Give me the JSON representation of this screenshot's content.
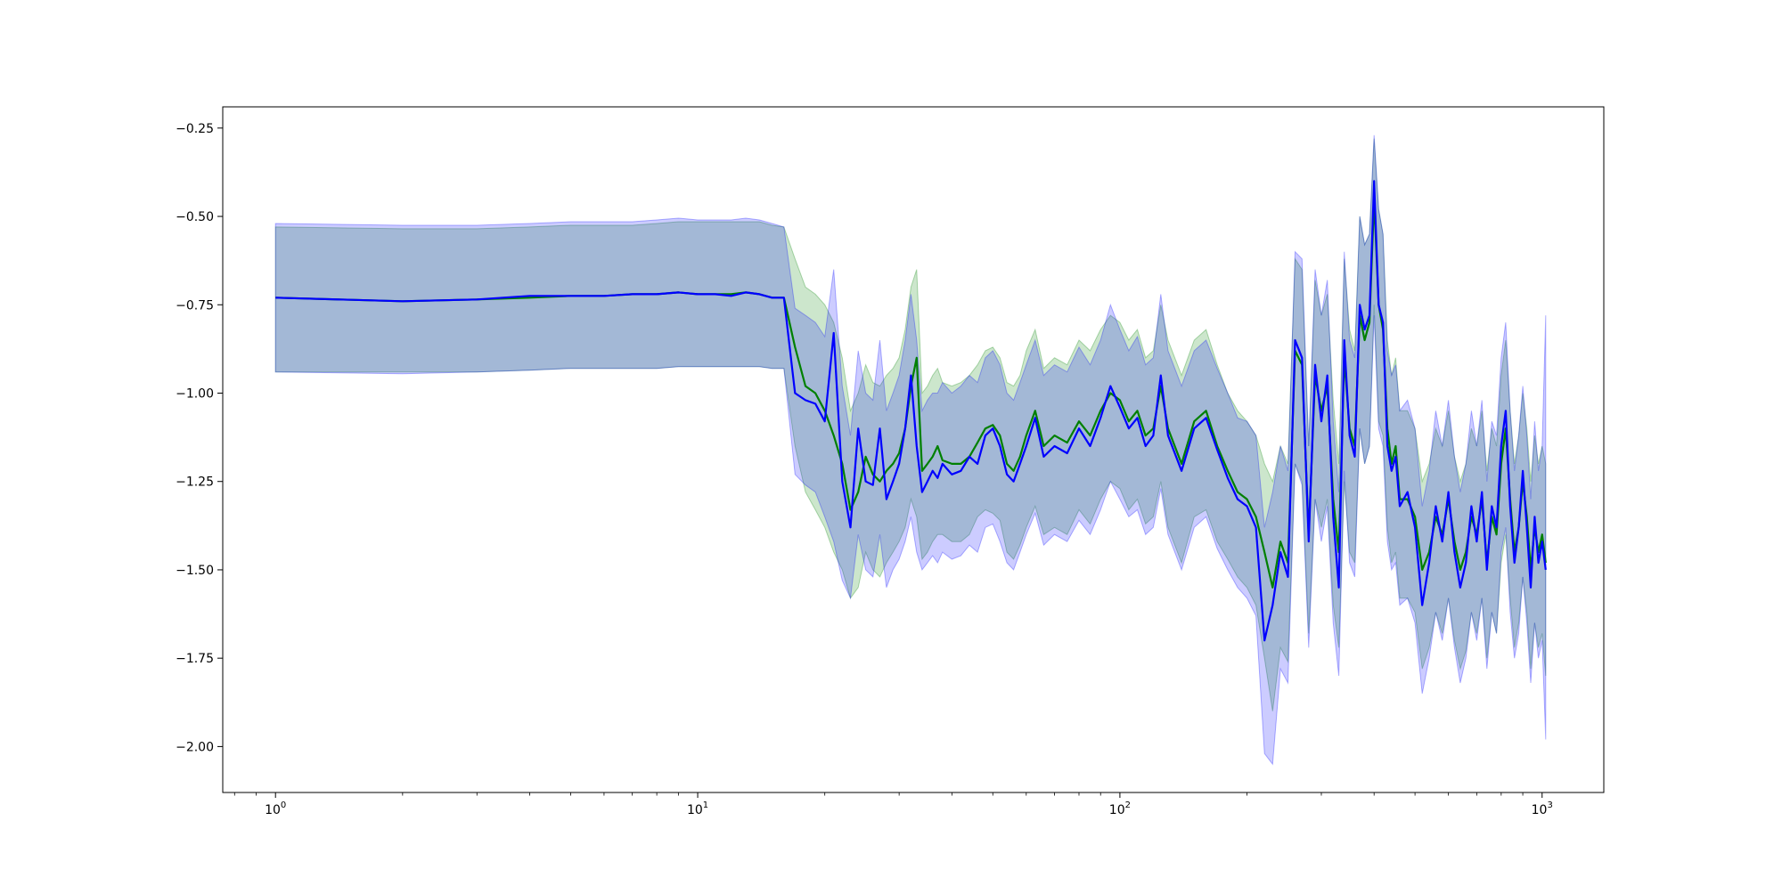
{
  "chart_data": {
    "type": "line",
    "xscale": "log",
    "xlim": [
      0.75,
      1400
    ],
    "ylim": [
      -2.13,
      -0.19
    ],
    "grid": false,
    "legend": "none",
    "x_ticks": [
      {
        "value": 1,
        "base": "10",
        "exp": "0"
      },
      {
        "value": 10,
        "base": "10",
        "exp": "1"
      },
      {
        "value": 100,
        "base": "10",
        "exp": "2"
      },
      {
        "value": 1000,
        "base": "10",
        "exp": "3"
      }
    ],
    "y_ticks": [
      {
        "value": -0.25,
        "label": "−0.25"
      },
      {
        "value": -0.5,
        "label": "−0.50"
      },
      {
        "value": -0.75,
        "label": "−0.75"
      },
      {
        "value": -1.0,
        "label": "−1.00"
      },
      {
        "value": -1.25,
        "label": "−1.25"
      },
      {
        "value": -1.5,
        "label": "−1.50"
      },
      {
        "value": -1.75,
        "label": "−1.75"
      },
      {
        "value": -2.0,
        "label": "−2.00"
      }
    ],
    "series": [
      {
        "color": "#008000",
        "band_color": "#008000",
        "x": [
          1,
          2,
          3,
          4,
          5,
          6,
          7,
          8,
          9,
          10,
          11,
          12,
          13,
          14,
          15,
          16,
          17,
          18,
          19,
          20,
          21,
          22,
          23,
          24,
          25,
          26,
          27,
          28,
          29,
          30,
          31,
          32,
          33,
          34,
          35,
          36,
          37,
          38,
          40,
          42,
          44,
          46,
          48,
          50,
          52,
          54,
          56,
          58,
          60,
          63,
          66,
          70,
          75,
          80,
          85,
          90,
          95,
          100,
          105,
          110,
          115,
          120,
          125,
          130,
          140,
          150,
          160,
          170,
          180,
          190,
          200,
          210,
          220,
          230,
          240,
          250,
          260,
          270,
          280,
          290,
          300,
          310,
          320,
          330,
          340,
          350,
          360,
          370,
          380,
          390,
          400,
          410,
          420,
          430,
          440,
          450,
          460,
          480,
          500,
          520,
          540,
          560,
          580,
          600,
          620,
          640,
          660,
          680,
          700,
          720,
          740,
          760,
          780,
          800,
          820,
          840,
          860,
          880,
          900,
          920,
          940,
          960,
          980,
          1000,
          1020
        ],
        "y": [
          -0.73,
          -0.74,
          -0.735,
          -0.73,
          -0.725,
          -0.725,
          -0.72,
          -0.72,
          -0.715,
          -0.72,
          -0.72,
          -0.72,
          -0.715,
          -0.72,
          -0.73,
          -0.73,
          -0.87,
          -0.98,
          -1.0,
          -1.05,
          -1.12,
          -1.2,
          -1.33,
          -1.28,
          -1.18,
          -1.23,
          -1.25,
          -1.22,
          -1.2,
          -1.17,
          -1.1,
          -0.98,
          -0.9,
          -1.22,
          -1.2,
          -1.18,
          -1.15,
          -1.19,
          -1.2,
          -1.2,
          -1.18,
          -1.14,
          -1.1,
          -1.09,
          -1.12,
          -1.2,
          -1.22,
          -1.18,
          -1.12,
          -1.05,
          -1.15,
          -1.12,
          -1.14,
          -1.08,
          -1.12,
          -1.05,
          -1.0,
          -1.02,
          -1.08,
          -1.05,
          -1.12,
          -1.1,
          -0.98,
          -1.1,
          -1.2,
          -1.08,
          -1.05,
          -1.15,
          -1.22,
          -1.28,
          -1.3,
          -1.35,
          -1.45,
          -1.55,
          -1.42,
          -1.48,
          -0.88,
          -0.92,
          -1.4,
          -0.95,
          -1.05,
          -0.98,
          -1.3,
          -1.45,
          -0.9,
          -1.1,
          -1.15,
          -0.78,
          -0.85,
          -0.8,
          -0.45,
          -0.75,
          -0.82,
          -1.1,
          -1.2,
          -1.15,
          -1.3,
          -1.3,
          -1.35,
          -1.5,
          -1.45,
          -1.35,
          -1.4,
          -1.3,
          -1.42,
          -1.5,
          -1.45,
          -1.35,
          -1.4,
          -1.3,
          -1.48,
          -1.35,
          -1.4,
          -1.2,
          -1.1,
          -1.3,
          -1.45,
          -1.38,
          -1.25,
          -1.35,
          -1.5,
          -1.38,
          -1.45,
          -1.4,
          -1.48
        ],
        "lower": [
          -0.94,
          -0.94,
          -0.94,
          -0.935,
          -0.93,
          -0.93,
          -0.93,
          -0.93,
          -0.925,
          -0.925,
          -0.925,
          -0.925,
          -0.925,
          -0.925,
          -0.93,
          -0.93,
          -1.15,
          -1.28,
          -1.33,
          -1.38,
          -1.45,
          -1.5,
          -1.58,
          -1.55,
          -1.45,
          -1.5,
          -1.52,
          -1.48,
          -1.45,
          -1.42,
          -1.38,
          -1.3,
          -1.35,
          -1.47,
          -1.45,
          -1.42,
          -1.4,
          -1.4,
          -1.42,
          -1.42,
          -1.4,
          -1.35,
          -1.33,
          -1.34,
          -1.36,
          -1.45,
          -1.47,
          -1.43,
          -1.38,
          -1.32,
          -1.4,
          -1.38,
          -1.4,
          -1.33,
          -1.37,
          -1.3,
          -1.25,
          -1.27,
          -1.33,
          -1.3,
          -1.37,
          -1.35,
          -1.25,
          -1.38,
          -1.48,
          -1.35,
          -1.33,
          -1.42,
          -1.47,
          -1.52,
          -1.55,
          -1.6,
          -1.75,
          -1.9,
          -1.72,
          -1.76,
          -1.2,
          -1.25,
          -1.68,
          -1.3,
          -1.38,
          -1.3,
          -1.6,
          -1.72,
          -1.25,
          -1.45,
          -1.48,
          -1.1,
          -1.2,
          -1.15,
          -0.75,
          -1.08,
          -1.12,
          -1.38,
          -1.48,
          -1.45,
          -1.58,
          -1.58,
          -1.62,
          -1.78,
          -1.72,
          -1.62,
          -1.68,
          -1.58,
          -1.7,
          -1.78,
          -1.73,
          -1.62,
          -1.68,
          -1.58,
          -1.75,
          -1.62,
          -1.68,
          -1.48,
          -1.4,
          -1.58,
          -1.72,
          -1.65,
          -1.52,
          -1.62,
          -1.78,
          -1.65,
          -1.72,
          -1.68,
          -1.8
        ],
        "upper": [
          -0.53,
          -0.535,
          -0.535,
          -0.53,
          -0.525,
          -0.525,
          -0.525,
          -0.52,
          -0.515,
          -0.515,
          -0.515,
          -0.515,
          -0.515,
          -0.515,
          -0.525,
          -0.53,
          -0.62,
          -0.7,
          -0.72,
          -0.75,
          -0.8,
          -0.9,
          -1.05,
          -1.0,
          -0.92,
          -0.97,
          -0.98,
          -0.95,
          -0.93,
          -0.9,
          -0.82,
          -0.7,
          -0.65,
          -1.0,
          -0.98,
          -0.95,
          -0.93,
          -0.97,
          -0.98,
          -0.97,
          -0.95,
          -0.92,
          -0.88,
          -0.87,
          -0.9,
          -0.97,
          -0.98,
          -0.95,
          -0.88,
          -0.82,
          -0.93,
          -0.9,
          -0.92,
          -0.85,
          -0.88,
          -0.82,
          -0.78,
          -0.8,
          -0.85,
          -0.82,
          -0.9,
          -0.88,
          -0.75,
          -0.85,
          -0.95,
          -0.85,
          -0.82,
          -0.92,
          -1.0,
          -1.05,
          -1.08,
          -1.12,
          -1.2,
          -1.25,
          -1.15,
          -1.2,
          -0.62,
          -0.65,
          -1.15,
          -0.68,
          -0.78,
          -0.72,
          -1.02,
          -1.2,
          -0.62,
          -0.82,
          -0.88,
          -0.5,
          -0.58,
          -0.55,
          -0.28,
          -0.48,
          -0.55,
          -0.85,
          -0.95,
          -0.9,
          -1.05,
          -1.05,
          -1.1,
          -1.25,
          -1.2,
          -1.1,
          -1.15,
          -1.05,
          -1.18,
          -1.25,
          -1.2,
          -1.1,
          -1.15,
          -1.05,
          -1.22,
          -1.1,
          -1.15,
          -0.95,
          -0.85,
          -1.05,
          -1.2,
          -1.12,
          -1.0,
          -1.1,
          -1.25,
          -1.12,
          -1.2,
          -1.15,
          -1.2
        ]
      },
      {
        "color": "#0000ff",
        "band_color": "#0000ff",
        "x": [
          1,
          2,
          3,
          4,
          5,
          6,
          7,
          8,
          9,
          10,
          11,
          12,
          13,
          14,
          15,
          16,
          17,
          18,
          19,
          20,
          21,
          22,
          23,
          24,
          25,
          26,
          27,
          28,
          29,
          30,
          31,
          32,
          33,
          34,
          35,
          36,
          37,
          38,
          40,
          42,
          44,
          46,
          48,
          50,
          52,
          54,
          56,
          58,
          60,
          63,
          66,
          70,
          75,
          80,
          85,
          90,
          95,
          100,
          105,
          110,
          115,
          120,
          125,
          130,
          140,
          150,
          160,
          170,
          180,
          190,
          200,
          210,
          220,
          230,
          240,
          250,
          260,
          270,
          280,
          290,
          300,
          310,
          320,
          330,
          340,
          350,
          360,
          370,
          380,
          390,
          400,
          410,
          420,
          430,
          440,
          450,
          460,
          480,
          500,
          520,
          540,
          560,
          580,
          600,
          620,
          640,
          660,
          680,
          700,
          720,
          740,
          760,
          780,
          800,
          820,
          840,
          860,
          880,
          900,
          920,
          940,
          960,
          980,
          1000,
          1020
        ],
        "y": [
          -0.73,
          -0.74,
          -0.735,
          -0.725,
          -0.725,
          -0.725,
          -0.72,
          -0.72,
          -0.715,
          -0.72,
          -0.72,
          -0.725,
          -0.715,
          -0.72,
          -0.73,
          -0.73,
          -1.0,
          -1.02,
          -1.03,
          -1.08,
          -0.83,
          -1.25,
          -1.38,
          -1.1,
          -1.25,
          -1.26,
          -1.1,
          -1.3,
          -1.25,
          -1.2,
          -1.1,
          -0.95,
          -1.15,
          -1.28,
          -1.25,
          -1.22,
          -1.24,
          -1.2,
          -1.23,
          -1.22,
          -1.18,
          -1.2,
          -1.12,
          -1.1,
          -1.15,
          -1.23,
          -1.25,
          -1.2,
          -1.15,
          -1.07,
          -1.18,
          -1.15,
          -1.17,
          -1.1,
          -1.15,
          -1.07,
          -0.98,
          -1.04,
          -1.1,
          -1.07,
          -1.15,
          -1.12,
          -0.95,
          -1.12,
          -1.22,
          -1.1,
          -1.07,
          -1.16,
          -1.24,
          -1.3,
          -1.32,
          -1.38,
          -1.7,
          -1.6,
          -1.45,
          -1.52,
          -0.85,
          -0.9,
          -1.42,
          -0.92,
          -1.08,
          -0.95,
          -1.35,
          -1.55,
          -0.85,
          -1.12,
          -1.18,
          -0.75,
          -0.82,
          -0.78,
          -0.4,
          -0.75,
          -0.8,
          -1.15,
          -1.22,
          -1.18,
          -1.32,
          -1.28,
          -1.38,
          -1.6,
          -1.48,
          -1.32,
          -1.42,
          -1.28,
          -1.45,
          -1.55,
          -1.48,
          -1.32,
          -1.42,
          -1.28,
          -1.5,
          -1.32,
          -1.38,
          -1.15,
          -1.05,
          -1.32,
          -1.48,
          -1.38,
          -1.22,
          -1.38,
          -1.55,
          -1.35,
          -1.48,
          -1.42,
          -1.5
        ],
        "lower": [
          -0.94,
          -0.945,
          -0.94,
          -0.935,
          -0.93,
          -0.93,
          -0.93,
          -0.93,
          -0.925,
          -0.925,
          -0.925,
          -0.925,
          -0.925,
          -0.925,
          -0.93,
          -0.93,
          -1.23,
          -1.26,
          -1.28,
          -1.35,
          -1.42,
          -1.53,
          -1.58,
          -1.4,
          -1.5,
          -1.52,
          -1.4,
          -1.55,
          -1.5,
          -1.47,
          -1.42,
          -1.35,
          -1.45,
          -1.5,
          -1.48,
          -1.46,
          -1.48,
          -1.45,
          -1.47,
          -1.46,
          -1.43,
          -1.45,
          -1.38,
          -1.37,
          -1.42,
          -1.48,
          -1.5,
          -1.45,
          -1.4,
          -1.34,
          -1.43,
          -1.4,
          -1.42,
          -1.36,
          -1.4,
          -1.33,
          -1.25,
          -1.3,
          -1.35,
          -1.33,
          -1.4,
          -1.38,
          -1.27,
          -1.4,
          -1.5,
          -1.38,
          -1.35,
          -1.44,
          -1.5,
          -1.55,
          -1.58,
          -1.63,
          -2.02,
          -2.05,
          -1.78,
          -1.82,
          -1.2,
          -1.26,
          -1.72,
          -1.3,
          -1.42,
          -1.32,
          -1.65,
          -1.8,
          -1.22,
          -1.48,
          -1.52,
          -1.1,
          -1.2,
          -1.15,
          -0.78,
          -1.1,
          -1.15,
          -1.42,
          -1.5,
          -1.48,
          -1.6,
          -1.58,
          -1.65,
          -1.85,
          -1.75,
          -1.62,
          -1.7,
          -1.58,
          -1.72,
          -1.82,
          -1.75,
          -1.62,
          -1.7,
          -1.58,
          -1.78,
          -1.62,
          -1.68,
          -1.45,
          -1.38,
          -1.62,
          -1.75,
          -1.68,
          -1.52,
          -1.65,
          -1.82,
          -1.65,
          -1.75,
          -1.7,
          -1.98
        ],
        "upper": [
          -0.52,
          -0.525,
          -0.525,
          -0.52,
          -0.515,
          -0.515,
          -0.515,
          -0.51,
          -0.505,
          -0.51,
          -0.51,
          -0.51,
          -0.505,
          -0.51,
          -0.52,
          -0.53,
          -0.76,
          -0.78,
          -0.8,
          -0.84,
          -0.65,
          -0.98,
          -1.12,
          -0.88,
          -1.0,
          -1.02,
          -0.85,
          -1.05,
          -1.0,
          -0.95,
          -0.85,
          -0.72,
          -0.85,
          -1.05,
          -1.02,
          -1.0,
          -1.0,
          -0.97,
          -1.0,
          -0.98,
          -0.95,
          -0.97,
          -0.9,
          -0.88,
          -0.92,
          -1.0,
          -1.02,
          -0.97,
          -0.92,
          -0.85,
          -0.95,
          -0.92,
          -0.94,
          -0.87,
          -0.92,
          -0.85,
          -0.75,
          -0.82,
          -0.88,
          -0.84,
          -0.92,
          -0.9,
          -0.72,
          -0.88,
          -0.98,
          -0.88,
          -0.85,
          -0.93,
          -1.0,
          -1.07,
          -1.08,
          -1.12,
          -1.38,
          -1.28,
          -1.15,
          -1.22,
          -0.6,
          -0.62,
          -1.15,
          -0.65,
          -0.78,
          -0.68,
          -1.08,
          -1.28,
          -0.6,
          -0.85,
          -0.9,
          -0.5,
          -0.58,
          -0.55,
          -0.27,
          -0.48,
          -0.55,
          -0.88,
          -0.95,
          -0.92,
          -1.05,
          -1.02,
          -1.1,
          -1.32,
          -1.22,
          -1.05,
          -1.15,
          -1.02,
          -1.18,
          -1.28,
          -1.2,
          -1.05,
          -1.15,
          -1.02,
          -1.25,
          -1.08,
          -1.12,
          -0.9,
          -0.8,
          -1.05,
          -1.22,
          -1.12,
          -0.98,
          -1.12,
          -1.3,
          -1.08,
          -1.22,
          -1.15,
          -0.78
        ]
      }
    ]
  }
}
